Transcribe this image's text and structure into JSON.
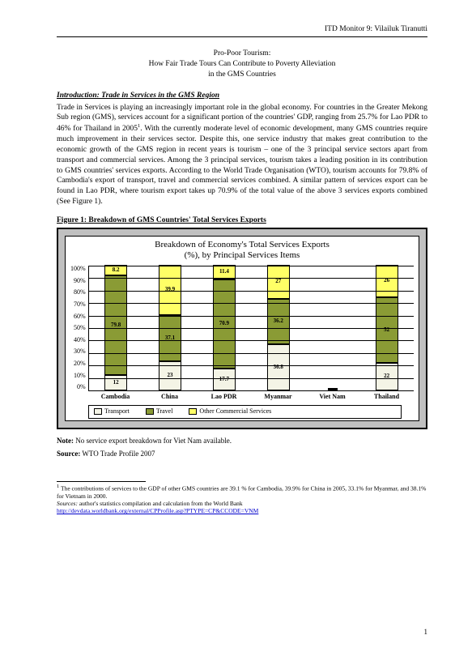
{
  "header": {
    "right": "ITD Monitor 9: Vilailuk Tiranutti"
  },
  "title": {
    "line1": "Pro-Poor Tourism:",
    "line2": "How Fair Trade Tours Can Contribute to Poverty Alleviation",
    "line3": "in the GMS Countries"
  },
  "intro": {
    "heading": "Introduction: Trade in Services in the GMS Region",
    "body_a": "Trade in Services is playing an increasingly important role in the global economy. For countries in the Greater Mekong Sub region (GMS), services account for a significant portion of the countries' GDP, ranging from 25.7% for Lao PDR to 46% for Thailand in 2005",
    "body_b": ". With the currently moderate level of economic development, many GMS countries require much improvement in their services sector. Despite this, one service industry that makes great contribution to the economic growth of the GMS region in recent years is tourism – one of the 3 principal service sectors apart from transport and commercial services. Among the 3 principal services, tourism takes a leading position in its contribution to GMS countries' services exports. According to the World Trade Organisation (WTO), tourism accounts for 79.8% of Cambodia's export of transport, travel and commercial services combined. A similar pattern of services export can be found in Lao PDR, where tourism export takes up 70.9% of the total value of the above 3 services exports combined (See Figure 1)."
  },
  "figure_caption": "Figure 1: Breakdown of GMS Countries' Total Services Exports",
  "chart": {
    "title_line1": "Breakdown of Economy's Total Services Exports",
    "title_line2": "(%), by Principal Services Items",
    "ylabel_ticks": [
      "100%",
      "90%",
      "80%",
      "70%",
      "60%",
      "50%",
      "40%",
      "30%",
      "20%",
      "10%",
      "0%"
    ],
    "categories": [
      "Cambodia",
      "China",
      "Lao PDR",
      "Myanmar",
      "Viet Nam",
      "Thailand"
    ],
    "series": [
      "Transport",
      "Travel",
      "Other Commercial Services"
    ],
    "colors": {
      "Transport": "#f4f4e6",
      "Travel": "#8a9b35",
      "Other": "#ffff66"
    },
    "bars": [
      {
        "transport": 12.0,
        "travel": 79.8,
        "other": 8.2
      },
      {
        "transport": 23.0,
        "travel": 37.1,
        "other": 39.9
      },
      {
        "transport": 17.7,
        "travel": 70.9,
        "other": 11.4
      },
      {
        "transport": 36.8,
        "travel": 36.2,
        "other": 27.0
      },
      {
        "transport": 0,
        "travel": 0,
        "other": 0
      },
      {
        "transport": 22.0,
        "travel": 52.0,
        "other": 26.0
      }
    ],
    "legend": {
      "transport": "Transport",
      "travel": "Travel",
      "other": "Other Commercial Services"
    }
  },
  "notes": {
    "note_label": "Note:",
    "note_text": " No service export breakdown for Viet Nam available.",
    "source_label": "Source:",
    "source_text": " WTO Trade Profile 2007"
  },
  "footnote": {
    "marker": "1",
    "line1": " The contributions of services to the GDP of other GMS countries are 39.1 % for Cambodia, 39.9% for China in 2005, 33.1% for Myanmar, and 38.1% for Vietnam in 2000.",
    "sources_label": "Sources:",
    "sources_text": " author's statistics compilation and calculation from the World Bank",
    "url": "http://devdata.worldbank.org/external/CPProfile.asp?PTYPE=CP&CCODE=VNM"
  },
  "page_number": "1"
}
